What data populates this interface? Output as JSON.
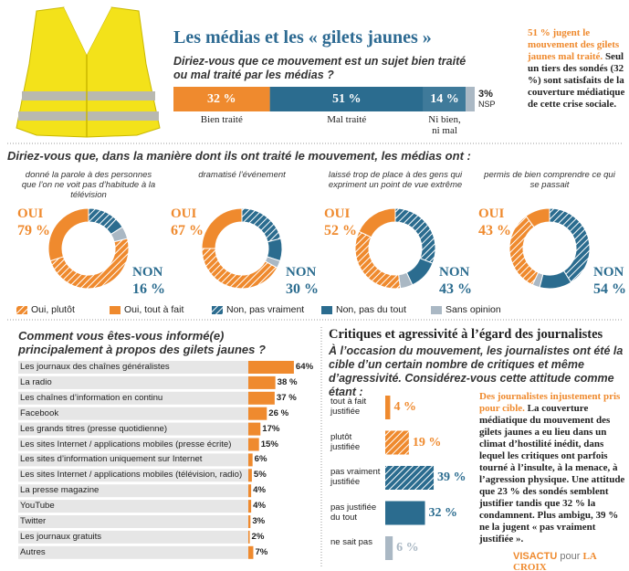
{
  "header": {
    "title": "Les médias et les « gilets jaunes »",
    "question": "Diriez-vous que ce mouvement est un sujet bien traité ou mal traité par les médias ?"
  },
  "treatment": {
    "segments": [
      {
        "label": "Bien traité",
        "value": 32,
        "value_label": "32 %",
        "color": "#ef8a2e"
      },
      {
        "label": "Mal traité",
        "value": 51,
        "value_label": "51 %",
        "color": "#2b6c8f"
      },
      {
        "label": "Ni bien, ni mal",
        "value": 14,
        "value_label": "14 %",
        "color": "#3f7a9a"
      },
      {
        "label": "NSP",
        "value": 3,
        "value_label": "3%",
        "color": "#aab8c4"
      }
    ]
  },
  "note": {
    "highlight": "51 % jugent le mouvement des gilets jaunes mal traité.",
    "text": "Seul un tiers des sondés (32 %) sont satisfaits de la couverture médiatique de cette crise sociale."
  },
  "donuts": {
    "question": "Diriez-vous que, dans la manière dont ils ont traité le mouvement, les médias ont :",
    "oui_label": "OUI",
    "non_label": "NON",
    "legend": [
      {
        "name": "Oui, plutôt",
        "color": "#ef8a2e",
        "hatched": true
      },
      {
        "name": "Oui, tout à fait",
        "color": "#ef8a2e",
        "hatched": false
      },
      {
        "name": "Non, pas vraiment",
        "color": "#2b6c8f",
        "hatched": true
      },
      {
        "name": "Non, pas du tout",
        "color": "#2b6c8f",
        "hatched": false
      },
      {
        "name": "Sans opinion",
        "color": "#aab8c4",
        "hatched": false
      }
    ],
    "items": [
      {
        "caption": "donné la parole à des personnes que l’on ne voit pas d’habitude à la télévision",
        "oui": "79 %",
        "non": "16 %",
        "segments": [
          49,
          30,
          12,
          4,
          5
        ]
      },
      {
        "caption": "dramatisé l’événement",
        "oui": "67 %",
        "non": "30 %",
        "segments": [
          42,
          25,
          21,
          9,
          3
        ]
      },
      {
        "caption": "laissé trop de place à des gens qui expriment un point de vue extrême",
        "oui": "52 %",
        "non": "43 %",
        "segments": [
          34,
          18,
          31,
          12,
          5
        ]
      },
      {
        "caption": "permis de bien comprendre ce qui se passait",
        "oui": "43 %",
        "non": "54 %",
        "segments": [
          33,
          10,
          41,
          13,
          3
        ]
      }
    ]
  },
  "sources": {
    "question": "Comment vous êtes-vous informé(e) principalement à propos des gilets jaunes ?",
    "color": "#ef8a2e",
    "rows": [
      {
        "label": "Les journaux des chaînes généralistes",
        "value": 64,
        "value_label": "64%"
      },
      {
        "label": "La radio",
        "value": 38,
        "value_label": "38 %"
      },
      {
        "label": "Les chaînes d’information en continu",
        "value": 37,
        "value_label": "37 %"
      },
      {
        "label": "Facebook",
        "value": 26,
        "value_label": "26 %"
      },
      {
        "label": "Les grands titres (presse quotidienne)",
        "value": 17,
        "value_label": "17%"
      },
      {
        "label": "Les sites Internet / applications mobiles (presse écrite)",
        "value": 15,
        "value_label": "15%"
      },
      {
        "label": "Les sites d’information uniquement sur Internet",
        "value": 6,
        "value_label": "6%"
      },
      {
        "label": "Les sites Internet / applications mobiles (télévision, radio)",
        "value": 5,
        "value_label": "5%"
      },
      {
        "label": "La presse magazine",
        "value": 4,
        "value_label": "4%"
      },
      {
        "label": "YouTube",
        "value": 4,
        "value_label": "4%"
      },
      {
        "label": "Twitter",
        "value": 3,
        "value_label": "3%"
      },
      {
        "label": "Les journaux gratuits",
        "value": 2,
        "value_label": "2%"
      },
      {
        "label": "Autres",
        "value": 7,
        "value_label": "7%"
      }
    ]
  },
  "critiques": {
    "title": "Critiques et agressivité à l’égard des journalistes",
    "intro": "À l’occasion du mouvement, les journalistes ont été la cible d’un certain nombre de critiques et même d’agressivité. Considérez-vous cette attitude comme étant :",
    "rows": [
      {
        "label": "tout à fait justifiée",
        "value": 4,
        "value_label": "4 %",
        "color": "#ef8a2e",
        "hatched": false
      },
      {
        "label": "plutôt justifiée",
        "value": 19,
        "value_label": "19 %",
        "color": "#ef8a2e",
        "hatched": true
      },
      {
        "label": "pas vraiment justifiée",
        "value": 39,
        "value_label": "39 %",
        "color": "#2b6c8f",
        "hatched": true
      },
      {
        "label": "pas justifiée du tout",
        "value": 32,
        "value_label": "32 %",
        "color": "#2b6c8f",
        "hatched": false
      },
      {
        "label": "ne sait pas",
        "value": 6,
        "value_label": "6 %",
        "color": "#aab8c4",
        "hatched": false
      }
    ],
    "note": {
      "highlight": "Des journalistes injustement pris pour cible.",
      "text": "La couverture médiatique du mouvement des gilets jaunes a eu lieu dans un climat d’hostilité inédit, dans lequel les critiques ont parfois tourné à l’insulte, à la menace, à l’agression physique. Une attitude que 23 % des sondés semblent justifier tandis que 32 % la condamnent. Plus ambigu, 39 % ne la jugent « pas vraiment justifiée »."
    }
  },
  "footer": {
    "brand": "VISACTU",
    "sep": "pour",
    "paper": "LA CROIX"
  }
}
